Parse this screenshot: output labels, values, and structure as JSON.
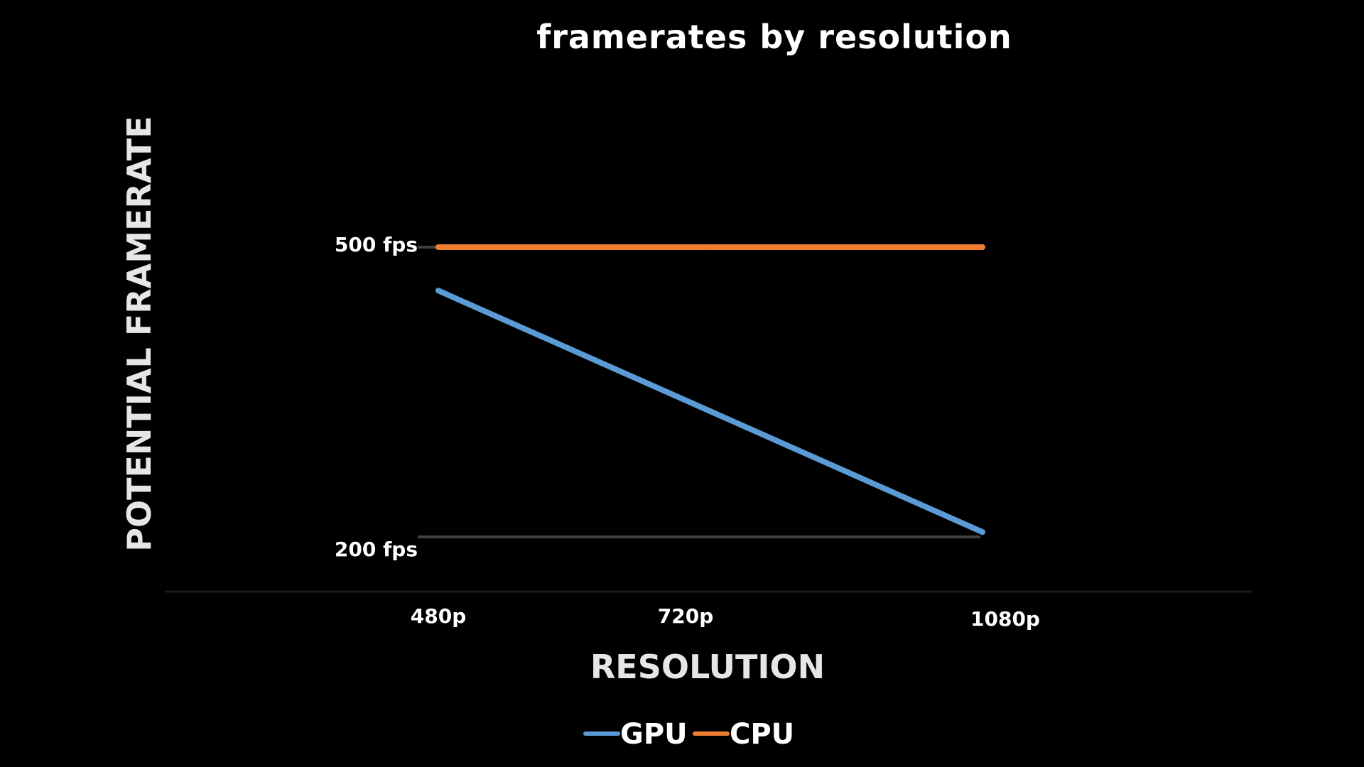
{
  "chart_data": {
    "type": "line",
    "title": "framerates by resolution",
    "xlabel": "RESOLUTION",
    "ylabel": "POTENTIAL FRAMERATE",
    "categories": [
      "480p",
      "720p",
      "1080p"
    ],
    "series": [
      {
        "name": "GPU",
        "color": "#5b9bd5",
        "values": [
          455,
          330,
          205
        ]
      },
      {
        "name": "CPU",
        "color": "#ed7d31",
        "values": [
          500,
          500,
          500
        ]
      }
    ],
    "y_ticks": [
      {
        "value": 200,
        "label": "200 fps"
      },
      {
        "value": 500,
        "label": "500 fps"
      }
    ],
    "ylim": [
      200,
      500
    ],
    "grid": true,
    "gridline_color": "#404040",
    "axis_color": "#1a1a1a",
    "legend_position": "bottom"
  }
}
